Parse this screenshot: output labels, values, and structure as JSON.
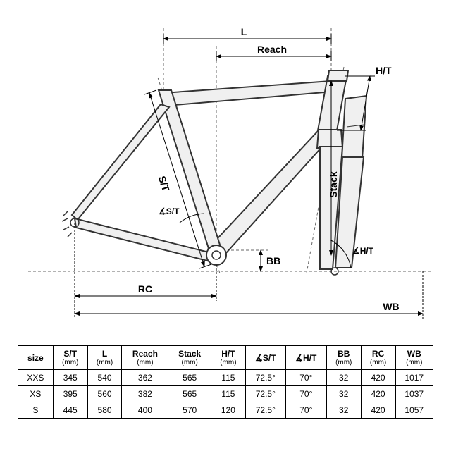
{
  "diagram": {
    "labels": {
      "L": "L",
      "Reach": "Reach",
      "HT": "H/T",
      "Stack": "Stack",
      "ST": "S/T",
      "angle_ST": "∡S/T",
      "angle_HT": "∡H/T",
      "BB": "BB",
      "RC": "RC",
      "WB": "WB"
    },
    "colors": {
      "frame_fill": "#f0f0f0",
      "frame_stroke": "#333333",
      "dim_line": "#000000",
      "dash": "#666666",
      "bg": "#ffffff"
    },
    "stroke_widths": {
      "frame": 2,
      "dim": 1,
      "dash": 1
    }
  },
  "table": {
    "columns": [
      {
        "label": "size",
        "unit": ""
      },
      {
        "label": "S/T",
        "unit": "(mm)"
      },
      {
        "label": "L",
        "unit": "(mm)"
      },
      {
        "label": "Reach",
        "unit": "(mm)"
      },
      {
        "label": "Stack",
        "unit": "(mm)"
      },
      {
        "label": "H/T",
        "unit": "(mm)"
      },
      {
        "label": "∡S/T",
        "unit": ""
      },
      {
        "label": "∡H/T",
        "unit": ""
      },
      {
        "label": "BB",
        "unit": "(mm)"
      },
      {
        "label": "RC",
        "unit": "(mm)"
      },
      {
        "label": "WB",
        "unit": "(mm)"
      }
    ],
    "rows": [
      [
        "XXS",
        "345",
        "540",
        "362",
        "565",
        "115",
        "72.5°",
        "70°",
        "32",
        "420",
        "1017"
      ],
      [
        "XS",
        "395",
        "560",
        "382",
        "565",
        "115",
        "72.5°",
        "70°",
        "32",
        "420",
        "1037"
      ],
      [
        "S",
        "445",
        "580",
        "400",
        "570",
        "120",
        "72.5°",
        "70°",
        "32",
        "420",
        "1057"
      ]
    ]
  }
}
